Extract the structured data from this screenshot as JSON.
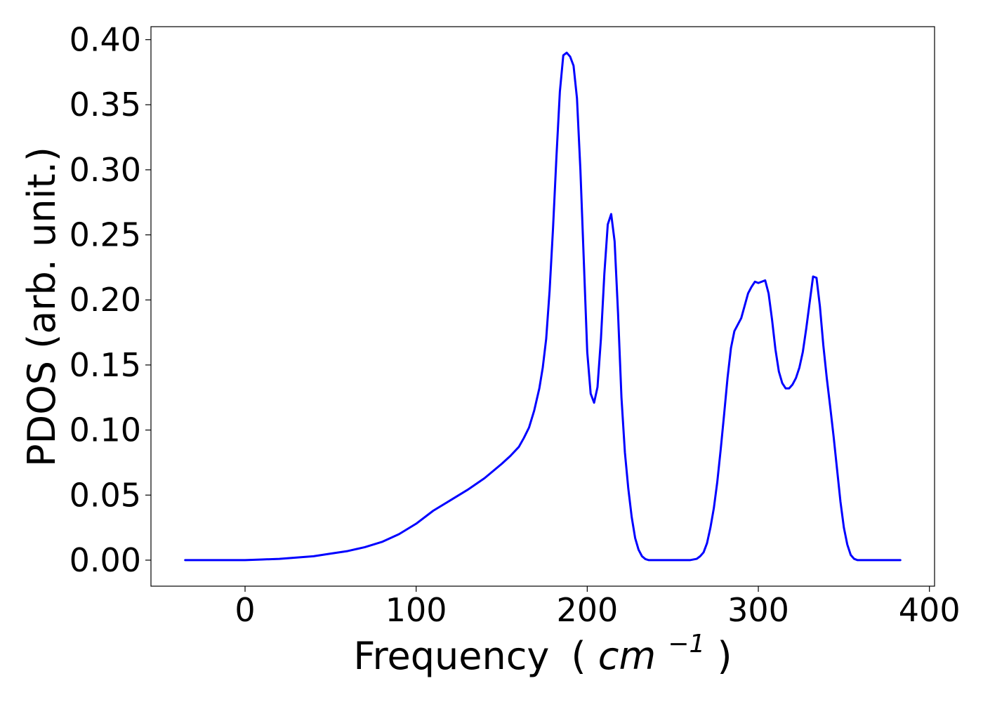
{
  "chart_data": {
    "type": "line",
    "title": "",
    "xlabel": "Frequency",
    "xlabel_unit_open": "(",
    "xlabel_unit_base": "cm",
    "xlabel_unit_exponent": "−1",
    "xlabel_unit_close": ")",
    "ylabel": "PDOS (arb. unit.)",
    "xlim": [
      -55,
      403
    ],
    "ylim": [
      -0.02,
      0.41
    ],
    "xticks": [
      0,
      100,
      200,
      300,
      400
    ],
    "xtick_labels": [
      "0",
      "100",
      "200",
      "300",
      "400"
    ],
    "yticks": [
      0.0,
      0.05,
      0.1,
      0.15,
      0.2,
      0.25,
      0.3,
      0.35,
      0.4
    ],
    "ytick_labels": [
      "0.00",
      "0.05",
      "0.10",
      "0.15",
      "0.20",
      "0.25",
      "0.30",
      "0.35",
      "0.40"
    ],
    "grid": false,
    "legend": "none",
    "line_color": "#0000ff",
    "series": [
      {
        "x": [
          -35,
          0,
          10,
          20,
          30,
          40,
          50,
          60,
          70,
          80,
          90,
          100,
          110,
          120,
          130,
          140,
          150,
          155,
          160,
          163,
          166,
          169,
          172,
          174,
          176,
          178,
          180,
          182,
          184,
          186,
          188,
          190,
          192,
          194,
          196,
          198,
          200,
          202,
          204,
          206,
          208,
          210,
          212,
          214,
          216,
          218,
          220,
          222,
          224,
          226,
          228,
          230,
          232,
          234,
          236,
          240,
          250,
          260,
          264,
          266,
          268,
          270,
          272,
          274,
          276,
          278,
          280,
          282,
          284,
          286,
          290,
          294,
          296,
          298,
          300,
          302,
          304,
          306,
          308,
          310,
          312,
          314,
          316,
          318,
          320,
          322,
          324,
          326,
          328,
          330,
          332,
          334,
          336,
          338,
          340,
          342,
          344,
          346,
          348,
          350,
          352,
          354,
          356,
          358,
          360,
          370,
          383
        ],
        "y": [
          0,
          0,
          0.0005,
          0.001,
          0.002,
          0.003,
          0.005,
          0.007,
          0.01,
          0.014,
          0.02,
          0.028,
          0.038,
          0.046,
          0.054,
          0.063,
          0.074,
          0.08,
          0.087,
          0.094,
          0.102,
          0.115,
          0.132,
          0.148,
          0.17,
          0.207,
          0.255,
          0.31,
          0.36,
          0.388,
          0.39,
          0.387,
          0.38,
          0.355,
          0.3,
          0.23,
          0.16,
          0.128,
          0.121,
          0.133,
          0.17,
          0.22,
          0.258,
          0.266,
          0.245,
          0.19,
          0.125,
          0.083,
          0.055,
          0.033,
          0.017,
          0.008,
          0.003,
          0.0008,
          0,
          0,
          0,
          0,
          0.001,
          0.003,
          0.006,
          0.013,
          0.025,
          0.04,
          0.06,
          0.085,
          0.112,
          0.14,
          0.163,
          0.176,
          0.186,
          0.205,
          0.21,
          0.214,
          0.213,
          0.214,
          0.215,
          0.205,
          0.185,
          0.162,
          0.145,
          0.136,
          0.132,
          0.132,
          0.135,
          0.14,
          0.148,
          0.16,
          0.178,
          0.198,
          0.218,
          0.217,
          0.195,
          0.165,
          0.14,
          0.118,
          0.095,
          0.07,
          0.045,
          0.025,
          0.012,
          0.004,
          0.001,
          0,
          0,
          0,
          0
        ]
      }
    ]
  }
}
